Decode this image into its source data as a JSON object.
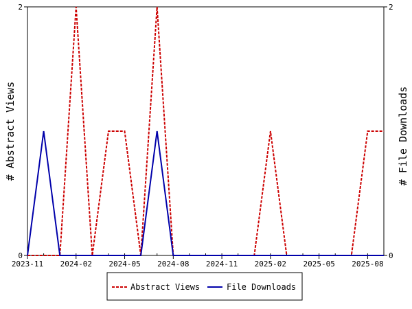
{
  "chart_data": {
    "type": "line",
    "y_left_label": "# Abstract Views",
    "y_right_label": "# File Downloads",
    "y_left_range": [
      0,
      2
    ],
    "y_right_range": [
      0,
      2
    ],
    "y_left_ticks": [
      "0",
      "2"
    ],
    "y_right_ticks": [
      "0",
      "2"
    ],
    "x_range": [
      "2023-11",
      "2025-09"
    ],
    "x_tick_labels": [
      "2023-11",
      "2024-02",
      "2024-05",
      "2024-08",
      "2024-11",
      "2025-02",
      "2025-05",
      "2025-08"
    ],
    "x": [
      "2023-11",
      "2023-12",
      "2024-01",
      "2024-02",
      "2024-03",
      "2024-04",
      "2024-05",
      "2024-06",
      "2024-07",
      "2024-08",
      "2024-09",
      "2024-10",
      "2024-11",
      "2024-12",
      "2025-01",
      "2025-02",
      "2025-03",
      "2025-04",
      "2025-05",
      "2025-06",
      "2025-07",
      "2025-08",
      "2025-09"
    ],
    "grid": false,
    "legend_position": "bottom",
    "series": [
      {
        "name": "Abstract Views",
        "axis": "left",
        "color": "#cc0000",
        "dash": "dashed",
        "values": [
          0,
          0,
          0,
          2,
          0,
          1,
          1,
          0,
          2,
          0,
          0,
          0,
          0,
          0,
          0,
          1,
          0,
          0,
          0,
          0,
          0,
          1,
          1
        ]
      },
      {
        "name": "File Downloads",
        "axis": "right",
        "color": "#0000aa",
        "dash": "solid",
        "values": [
          0,
          1,
          0,
          0,
          0,
          0,
          0,
          0,
          1,
          0,
          0,
          0,
          0,
          0,
          0,
          0,
          0,
          0,
          0,
          0,
          0,
          0,
          0
        ]
      }
    ]
  }
}
